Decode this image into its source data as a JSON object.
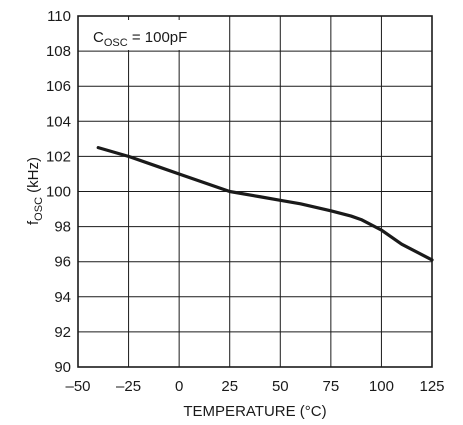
{
  "chart_data": {
    "type": "line",
    "title": "",
    "xlabel": "TEMPERATURE (°C)",
    "ylabel": "f_OSC (kHz)",
    "ylabel_parts": {
      "main": "f",
      "sub": "OSC",
      "rest": " (kHz)"
    },
    "xlim": [
      -50,
      125
    ],
    "ylim": [
      90,
      110
    ],
    "xticks": [
      -50,
      -25,
      0,
      25,
      50,
      75,
      100,
      125
    ],
    "xtick_labels": [
      "–50",
      "–25",
      "0",
      "25",
      "50",
      "75",
      "100",
      "125"
    ],
    "yticks": [
      90,
      92,
      94,
      96,
      98,
      100,
      102,
      104,
      106,
      108,
      110
    ],
    "grid": true,
    "annotation": {
      "main": "C",
      "sub": "OSC",
      "rest": " = 100pF"
    },
    "series": [
      {
        "x": [
          -40,
          -25,
          -10,
          0,
          10,
          25,
          40,
          50,
          60,
          75,
          85,
          90,
          100,
          110,
          125
        ],
        "y": [
          102.5,
          102.0,
          101.4,
          101.0,
          100.6,
          100.0,
          99.7,
          99.5,
          99.3,
          98.9,
          98.6,
          98.4,
          97.8,
          97.0,
          96.1
        ],
        "color": "#1a1a1a"
      }
    ]
  }
}
